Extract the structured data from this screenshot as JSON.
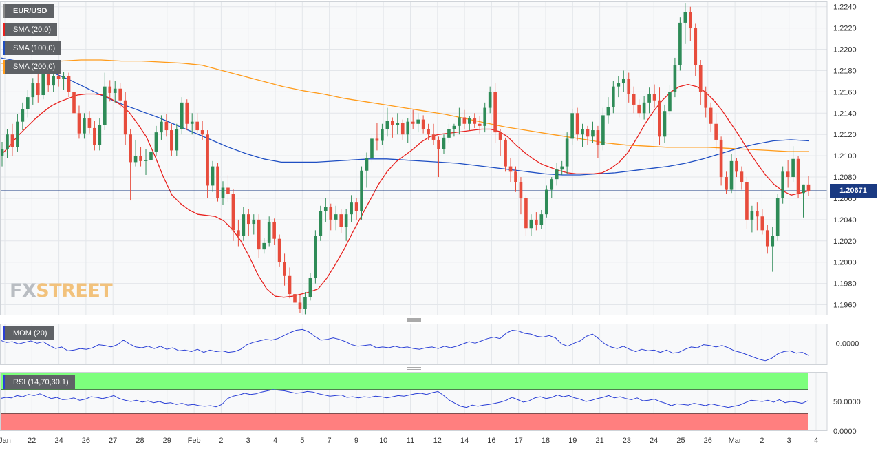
{
  "chart_data": {
    "type": "candlestick",
    "instrument": "EUR/USD",
    "legend": {
      "pair": "EUR/USD",
      "sma20": "SMA (20,0)",
      "sma100": "SMA (100,0)",
      "sma200": "SMA (200,0)",
      "mom": "MOM (20)",
      "rsi": "RSI (14,70,30,1)"
    },
    "colors": {
      "up": "#2e8b57",
      "down": "#e74c3c",
      "sma20": "#e8211e",
      "sma100": "#1f4fc3",
      "sma200": "#ff9b1a",
      "indicator": "#2a3fd6",
      "price_line": "#1a3a82",
      "rsi_overbought": "#7dff7d",
      "rsi_oversold": "#ff7f7f"
    },
    "last_price": "1.20671",
    "y_axis": {
      "min": 1.195,
      "max": 1.2245,
      "ticks": [
        "1.1960",
        "1.1980",
        "1.2000",
        "1.2020",
        "1.2040",
        "1.2060",
        "1.2080",
        "1.2100",
        "1.2120",
        "1.2140",
        "1.2160",
        "1.2180",
        "1.2200",
        "1.2220",
        "1.2240"
      ]
    },
    "mom_axis": {
      "tick": "-0.0000",
      "value": 0
    },
    "rsi_axis": {
      "ticks": [
        "50.0000",
        "0.0000"
      ],
      "overbought": 70,
      "oversold": 30
    },
    "x_labels": [
      "Jan",
      "22",
      "24",
      "26",
      "27",
      "28",
      "29",
      "Feb",
      "2",
      "3",
      "4",
      "5",
      "7",
      "9",
      "10",
      "11",
      "12",
      "14",
      "16",
      "17",
      "18",
      "19",
      "21",
      "23",
      "24",
      "25",
      "26",
      "Mar",
      "2",
      "3",
      "4"
    ],
    "candles": [
      [
        1.21,
        1.2113,
        1.209,
        1.2106
      ],
      [
        1.2106,
        1.2125,
        1.2098,
        1.212
      ],
      [
        1.212,
        1.213,
        1.21,
        1.2108
      ],
      [
        1.2108,
        1.2139,
        1.2104,
        1.2132
      ],
      [
        1.2132,
        1.215,
        1.2124,
        1.2144
      ],
      [
        1.2144,
        1.2162,
        1.2136,
        1.2155
      ],
      [
        1.2155,
        1.2173,
        1.2148,
        1.2168
      ],
      [
        1.2168,
        1.2178,
        1.215,
        1.2157
      ],
      [
        1.2157,
        1.2186,
        1.2153,
        1.2178
      ],
      [
        1.2178,
        1.2184,
        1.216,
        1.2166
      ],
      [
        1.2166,
        1.218,
        1.216,
        1.2175
      ],
      [
        1.2175,
        1.218,
        1.2165,
        1.2172
      ],
      [
        1.2172,
        1.2179,
        1.2162,
        1.2175
      ],
      [
        1.2175,
        1.2178,
        1.2155,
        1.216
      ],
      [
        1.216,
        1.2168,
        1.213,
        1.214
      ],
      [
        1.214,
        1.2147,
        1.2116,
        1.2121
      ],
      [
        1.2121,
        1.214,
        1.2116,
        1.2135
      ],
      [
        1.2135,
        1.2142,
        1.2121,
        1.2126
      ],
      [
        1.2126,
        1.2133,
        1.2105,
        1.211
      ],
      [
        1.211,
        1.2135,
        1.2105,
        1.2129
      ],
      [
        1.2129,
        1.2178,
        1.2124,
        1.2165
      ],
      [
        1.2165,
        1.2171,
        1.2151,
        1.2159
      ],
      [
        1.2159,
        1.217,
        1.215,
        1.2163
      ],
      [
        1.2163,
        1.2168,
        1.2145,
        1.2152
      ],
      [
        1.2152,
        1.216,
        1.211,
        1.212
      ],
      [
        1.212,
        1.2125,
        1.2058,
        1.2094
      ],
      [
        1.2094,
        1.2115,
        1.209,
        1.21
      ],
      [
        1.21,
        1.2108,
        1.209,
        1.2095
      ],
      [
        1.2095,
        1.2106,
        1.2082,
        1.2096
      ],
      [
        1.2096,
        1.2108,
        1.2089,
        1.2104
      ],
      [
        1.2104,
        1.2128,
        1.21,
        1.2122
      ],
      [
        1.2122,
        1.2138,
        1.2115,
        1.2132
      ],
      [
        1.2132,
        1.2139,
        1.2118,
        1.2124
      ],
      [
        1.2124,
        1.213,
        1.21,
        1.2105
      ],
      [
        1.2105,
        1.213,
        1.21,
        1.2125
      ],
      [
        1.2125,
        1.2155,
        1.212,
        1.215
      ],
      [
        1.215,
        1.2153,
        1.2124,
        1.213
      ],
      [
        1.213,
        1.214,
        1.212,
        1.2132
      ],
      [
        1.2132,
        1.214,
        1.2121,
        1.2124
      ],
      [
        1.2124,
        1.2133,
        1.2115,
        1.212
      ],
      [
        1.212,
        1.2124,
        1.206,
        1.2072
      ],
      [
        1.2072,
        1.2095,
        1.2066,
        1.209
      ],
      [
        1.209,
        1.2093,
        1.2057,
        1.206
      ],
      [
        1.206,
        1.2076,
        1.2054,
        1.207
      ],
      [
        1.207,
        1.2082,
        1.2056,
        1.2064
      ],
      [
        1.2064,
        1.2069,
        1.202,
        1.203
      ],
      [
        1.203,
        1.204,
        1.2015,
        1.2025
      ],
      [
        1.2025,
        1.2052,
        1.202,
        1.2045
      ],
      [
        1.2045,
        1.205,
        1.2025,
        1.2036
      ],
      [
        1.2036,
        1.2045,
        1.2026,
        1.204
      ],
      [
        1.204,
        1.2045,
        1.2004,
        1.2012
      ],
      [
        1.2012,
        1.2023,
        1.2008,
        1.2018
      ],
      [
        1.2018,
        1.2043,
        1.2015,
        1.2038
      ],
      [
        1.2038,
        1.2041,
        1.2016,
        1.2022
      ],
      [
        1.2022,
        1.2026,
        1.1996,
        1.2
      ],
      [
        1.2,
        1.2008,
        1.1978,
        1.1987
      ],
      [
        1.1987,
        1.1995,
        1.1966,
        1.197
      ],
      [
        1.197,
        1.198,
        1.1958,
        1.1962
      ],
      [
        1.1962,
        1.1969,
        1.1952,
        1.1956
      ],
      [
        1.1956,
        1.1972,
        1.1951,
        1.1967
      ],
      [
        1.1967,
        1.199,
        1.1964,
        1.1985
      ],
      [
        1.1985,
        1.203,
        1.198,
        1.2025
      ],
      [
        1.2025,
        1.2053,
        1.202,
        1.2048
      ],
      [
        1.2048,
        1.206,
        1.2038,
        1.2052
      ],
      [
        1.2052,
        1.2055,
        1.203,
        1.204
      ],
      [
        1.204,
        1.2053,
        1.203,
        1.2045
      ],
      [
        1.2045,
        1.205,
        1.2027,
        1.2033
      ],
      [
        1.2033,
        1.205,
        1.202,
        1.2045
      ],
      [
        1.2045,
        1.2063,
        1.2038,
        1.2056
      ],
      [
        1.2056,
        1.206,
        1.204,
        1.2048
      ],
      [
        1.2048,
        1.209,
        1.204,
        1.2086
      ],
      [
        1.2086,
        1.2103,
        1.207,
        1.2098
      ],
      [
        1.2098,
        1.212,
        1.2094,
        1.2116
      ],
      [
        1.2116,
        1.2131,
        1.2105,
        1.2114
      ],
      [
        1.2114,
        1.213,
        1.211,
        1.2125
      ],
      [
        1.2125,
        1.2145,
        1.2118,
        1.2133
      ],
      [
        1.2133,
        1.2136,
        1.2117,
        1.2129
      ],
      [
        1.2129,
        1.214,
        1.212,
        1.2131
      ],
      [
        1.2131,
        1.2134,
        1.2115,
        1.212
      ],
      [
        1.212,
        1.2135,
        1.2112,
        1.2132
      ],
      [
        1.2132,
        1.2143,
        1.2125,
        1.213
      ],
      [
        1.213,
        1.214,
        1.2122,
        1.2134
      ],
      [
        1.2134,
        1.2138,
        1.2121,
        1.2125
      ],
      [
        1.2125,
        1.213,
        1.2115,
        1.212
      ],
      [
        1.212,
        1.213,
        1.211,
        1.2115
      ],
      [
        1.2115,
        1.2118,
        1.208,
        1.2106
      ],
      [
        1.2106,
        1.212,
        1.2102,
        1.2117
      ],
      [
        1.2117,
        1.213,
        1.2112,
        1.2125
      ],
      [
        1.2125,
        1.213,
        1.2118,
        1.2128
      ],
      [
        1.2128,
        1.2145,
        1.212,
        1.2136
      ],
      [
        1.2136,
        1.2143,
        1.2125,
        1.213
      ],
      [
        1.213,
        1.2137,
        1.2124,
        1.2135
      ],
      [
        1.2135,
        1.214,
        1.2126,
        1.213
      ],
      [
        1.213,
        1.2137,
        1.2121,
        1.2128
      ],
      [
        1.2128,
        1.215,
        1.2122,
        1.2145
      ],
      [
        1.2145,
        1.2165,
        1.214,
        1.216
      ],
      [
        1.216,
        1.2168,
        1.2112,
        1.2122
      ],
      [
        1.2122,
        1.2125,
        1.21,
        1.2115
      ],
      [
        1.2115,
        1.2117,
        1.2085,
        1.209
      ],
      [
        1.209,
        1.2098,
        1.2075,
        1.2085
      ],
      [
        1.2085,
        1.209,
        1.2066,
        1.2075
      ],
      [
        1.2075,
        1.208,
        1.2045,
        1.206
      ],
      [
        1.206,
        1.2063,
        1.2025,
        1.2032
      ],
      [
        1.2032,
        1.2045,
        1.2025,
        1.204
      ],
      [
        1.204,
        1.2047,
        1.203,
        1.2035
      ],
      [
        1.2035,
        1.2049,
        1.2031,
        1.2045
      ],
      [
        1.2045,
        1.2072,
        1.2042,
        1.2068
      ],
      [
        1.2068,
        1.208,
        1.206,
        1.2078
      ],
      [
        1.2078,
        1.2093,
        1.2072,
        1.2087
      ],
      [
        1.2087,
        1.2095,
        1.2082,
        1.209
      ],
      [
        1.209,
        1.2122,
        1.2083,
        1.2116
      ],
      [
        1.2116,
        1.2144,
        1.211,
        1.214
      ],
      [
        1.214,
        1.2145,
        1.2114,
        1.212
      ],
      [
        1.212,
        1.213,
        1.2108,
        1.2125
      ],
      [
        1.2125,
        1.2128,
        1.211,
        1.2118
      ],
      [
        1.2118,
        1.2132,
        1.2112,
        1.2124
      ],
      [
        1.2124,
        1.2128,
        1.2098,
        1.211
      ],
      [
        1.211,
        1.2145,
        1.2105,
        1.2138
      ],
      [
        1.2138,
        1.2155,
        1.213,
        1.2146
      ],
      [
        1.2146,
        1.217,
        1.214,
        1.2165
      ],
      [
        1.2165,
        1.2175,
        1.2155,
        1.2168
      ],
      [
        1.2168,
        1.218,
        1.216,
        1.2172
      ],
      [
        1.2172,
        1.2178,
        1.215,
        1.2158
      ],
      [
        1.2158,
        1.2165,
        1.214,
        1.2148
      ],
      [
        1.2148,
        1.2153,
        1.2136,
        1.214
      ],
      [
        1.214,
        1.2156,
        1.2134,
        1.215
      ],
      [
        1.215,
        1.2164,
        1.214,
        1.2158
      ],
      [
        1.2158,
        1.2167,
        1.2145,
        1.2152
      ],
      [
        1.2152,
        1.2164,
        1.211,
        1.2118
      ],
      [
        1.2118,
        1.2148,
        1.2112,
        1.2142
      ],
      [
        1.2142,
        1.2166,
        1.2138,
        1.216
      ],
      [
        1.216,
        1.2192,
        1.2155,
        1.2185
      ],
      [
        1.2185,
        1.223,
        1.218,
        1.2225
      ],
      [
        1.2225,
        1.2243,
        1.2205,
        1.2235
      ],
      [
        1.2235,
        1.224,
        1.2208,
        1.222
      ],
      [
        1.222,
        1.2224,
        1.2175,
        1.2185
      ],
      [
        1.2185,
        1.219,
        1.2148,
        1.216
      ],
      [
        1.216,
        1.2165,
        1.2136,
        1.2145
      ],
      [
        1.2145,
        1.215,
        1.2122,
        1.213
      ],
      [
        1.213,
        1.214,
        1.2105,
        1.2115
      ],
      [
        1.2115,
        1.2118,
        1.2072,
        1.208
      ],
      [
        1.208,
        1.2085,
        1.2064,
        1.2068
      ],
      [
        1.2068,
        1.2102,
        1.2065,
        1.2095
      ],
      [
        1.2095,
        1.2098,
        1.208,
        1.2085
      ],
      [
        1.2085,
        1.209,
        1.2068,
        1.2075
      ],
      [
        1.2075,
        1.208,
        1.2031,
        1.204
      ],
      [
        1.204,
        1.2053,
        1.2028,
        1.2048
      ],
      [
        1.2048,
        1.2056,
        1.203,
        1.2043
      ],
      [
        1.2043,
        1.205,
        1.2026,
        1.203
      ],
      [
        1.203,
        1.2035,
        1.2008,
        1.2015
      ],
      [
        1.2015,
        1.2033,
        1.1991,
        1.2025
      ],
      [
        1.2025,
        1.2064,
        1.202,
        1.206
      ],
      [
        1.206,
        1.209,
        1.2055,
        1.2085
      ],
      [
        1.2085,
        1.2096,
        1.207,
        1.208
      ],
      [
        1.208,
        1.2109,
        1.2075,
        1.2097
      ],
      [
        1.2097,
        1.21,
        1.206,
        1.2065
      ],
      [
        1.2065,
        1.2073,
        1.2042,
        1.2073
      ],
      [
        1.2073,
        1.2081,
        1.2062,
        1.2067
      ]
    ],
    "sma20": [
      1.21,
      1.2108,
      1.2118,
      1.2126,
      1.2134,
      1.2141,
      1.2147,
      1.2151,
      1.2154,
      1.2157,
      1.2158,
      1.2158,
      1.2157,
      1.2153,
      1.2148,
      1.2141,
      1.213,
      1.2118,
      1.21,
      1.208,
      1.2063,
      1.2055,
      1.2049,
      1.2045,
      1.2044,
      1.2043,
      1.2039,
      1.2031,
      1.202,
      1.2005,
      1.1988,
      1.1975,
      1.1968,
      1.1967,
      1.1968,
      1.197,
      1.1972,
      1.1975,
      1.1985,
      1.1998,
      1.2012,
      1.2028,
      1.2043,
      1.2058,
      1.2073,
      1.2085,
      1.2094,
      1.21,
      1.2106,
      1.2113,
      1.2118,
      1.212,
      1.2121,
      1.2122,
      1.2123,
      1.2124,
      1.2125,
      1.2125,
      1.2123,
      1.2118,
      1.211,
      1.2103,
      1.2097,
      1.2092,
      1.2089,
      1.2086,
      1.2084,
      1.2083,
      1.2083,
      1.2083,
      1.2084,
      1.2088,
      1.2094,
      1.2103,
      1.2116,
      1.213,
      1.2142,
      1.2152,
      1.216,
      1.2165,
      1.2167,
      1.2165,
      1.216,
      1.2152,
      1.2142,
      1.213,
      1.2118,
      1.2105,
      1.2093,
      1.2082,
      1.2073,
      1.2067,
      1.2063,
      1.2065,
      1.2067
    ],
    "sma100": [
      1.2192,
      1.2189,
      1.2184,
      1.2178,
      1.2171,
      1.2163,
      1.2155,
      1.2148,
      1.2142,
      1.2136,
      1.2129,
      1.2122,
      1.2115,
      1.2108,
      1.2102,
      1.2097,
      1.2094,
      1.2094,
      1.2094,
      1.2095,
      1.2096,
      1.2097,
      1.2097,
      1.2096,
      1.2095,
      1.2094,
      1.2093,
      1.2091,
      1.2089,
      1.2087,
      1.2085,
      1.2083,
      1.2082,
      1.2082,
      1.2083,
      1.2084,
      1.2086,
      1.2088,
      1.209,
      1.2093,
      1.2097,
      1.2102,
      1.2107,
      1.2111,
      1.2114,
      1.2115,
      1.2114
    ],
    "sma200": [
      1.2187,
      1.2186,
      1.2187,
      1.2189,
      1.219,
      1.219,
      1.2189,
      1.2189,
      1.2188,
      1.2187,
      1.2185,
      1.218,
      1.2175,
      1.217,
      1.2165,
      1.2161,
      1.2158,
      1.2154,
      1.2151,
      1.2148,
      1.2145,
      1.2142,
      1.2139,
      1.2135,
      1.2131,
      1.2127,
      1.2124,
      1.2121,
      1.2118,
      1.2115,
      1.2112,
      1.211,
      1.2109,
      1.2108,
      1.2108,
      1.2108,
      1.2107,
      1.2106,
      1.2105,
      1.2104,
      1.2104
    ],
    "mom": [
      4,
      1,
      2,
      -1,
      1,
      3,
      0,
      2,
      -3,
      -7,
      -5,
      -10,
      -9,
      -7,
      -8,
      -6,
      -2,
      -3,
      -5,
      -2,
      4,
      -1,
      -5,
      -6,
      -4,
      -7,
      -4,
      -8,
      -6,
      -10,
      -9,
      -11,
      -8,
      -12,
      -9,
      -11,
      -10,
      -12,
      -11,
      -8,
      -2,
      1,
      3,
      5,
      4,
      6,
      10,
      14,
      17,
      18,
      15,
      9,
      4,
      5,
      7,
      5,
      2,
      -2,
      -4,
      -3,
      -2,
      -6,
      -5,
      -6,
      -4,
      -6,
      -5,
      -7,
      -8,
      -6,
      -5,
      -7,
      -4,
      -6,
      -4,
      -1,
      2,
      0,
      3,
      6,
      8,
      6,
      13,
      17,
      16,
      13,
      12,
      9,
      8,
      10,
      7,
      -1,
      -4,
      0,
      3,
      9,
      12,
      6,
      -1,
      -5,
      -7,
      -4,
      -8,
      -11,
      -8,
      -10,
      -9,
      -12,
      -9,
      -13,
      -12,
      -8,
      -5,
      -6,
      -2,
      -3,
      -5,
      -3,
      -6,
      -10,
      -12,
      -15,
      -18,
      -21,
      -23,
      -20,
      -14,
      -11,
      -10,
      -13,
      -12,
      -16
    ],
    "rsi": [
      55,
      57,
      56,
      60,
      58,
      62,
      60,
      63,
      59,
      55,
      57,
      53,
      54,
      56,
      52,
      54,
      58,
      57,
      55,
      57,
      60,
      55,
      52,
      50,
      52,
      49,
      51,
      48,
      50,
      47,
      48,
      45,
      47,
      44,
      45,
      43,
      42,
      43,
      41,
      45,
      55,
      59,
      61,
      64,
      62,
      63,
      66,
      68,
      70,
      69,
      68,
      66,
      64,
      65,
      67,
      66,
      63,
      61,
      59,
      60,
      61,
      57,
      58,
      56,
      58,
      57,
      59,
      58,
      56,
      58,
      60,
      59,
      61,
      63,
      64,
      62,
      65,
      67,
      60,
      52,
      47,
      42,
      40,
      44,
      42,
      44,
      45,
      47,
      49,
      52,
      57,
      53,
      49,
      51,
      56,
      58,
      55,
      57,
      61,
      58,
      60,
      56,
      54,
      50,
      52,
      55,
      57,
      60,
      56,
      58,
      55,
      53,
      56,
      51,
      52,
      54,
      50,
      47,
      43,
      46,
      45,
      44,
      47,
      45,
      43,
      46,
      44,
      42,
      40,
      42,
      44,
      48,
      52,
      51,
      50,
      52,
      49,
      53,
      48,
      50,
      49,
      47,
      51
    ]
  }
}
